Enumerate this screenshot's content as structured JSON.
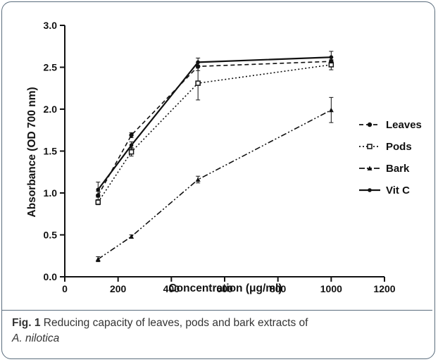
{
  "chart_data": {
    "type": "line",
    "xlabel": "Concentration (μg/ml)",
    "ylabel": "Absorbance (OD 700 nm)",
    "xlim": [
      0,
      1200
    ],
    "ylim": [
      0.0,
      3.0
    ],
    "xticks": [
      0,
      200,
      400,
      600,
      800,
      1000,
      1200
    ],
    "yticks": [
      0.0,
      0.5,
      1.0,
      1.5,
      2.0,
      2.5,
      3.0
    ],
    "xticklabels": [
      "0",
      "200",
      "400",
      "600",
      "800",
      "1000",
      "1200"
    ],
    "yticklabels": [
      "0.0",
      "0.5",
      "1.0",
      "1.5",
      "2.0",
      "2.5",
      "3.0"
    ],
    "grid": false,
    "legend_position": "right",
    "x": [
      125,
      250,
      500,
      1000
    ],
    "series": [
      {
        "name": "Leaves",
        "values": [
          0.97,
          1.69,
          2.51,
          2.57
        ],
        "errors": [
          0.05,
          0.03,
          0.05,
          0.05
        ],
        "dash": "6,4",
        "marker": "circle"
      },
      {
        "name": "Pods",
        "values": [
          0.89,
          1.49,
          2.31,
          2.53
        ],
        "errors": [
          0.03,
          0.05,
          0.2,
          0.06
        ],
        "dash": "2,3",
        "marker": "square"
      },
      {
        "name": "Bark",
        "values": [
          0.21,
          0.48,
          1.16,
          1.99
        ],
        "errors": [
          0.03,
          0.02,
          0.04,
          0.15
        ],
        "dash": "8,3,2,3,2,3",
        "marker": "triangle"
      },
      {
        "name": "Vit C",
        "values": [
          1.04,
          1.57,
          2.56,
          2.62
        ],
        "errors": [
          0.09,
          0.04,
          0.05,
          0.07
        ],
        "dash": "",
        "marker": "dot"
      }
    ]
  },
  "caption": {
    "label": "Fig. 1",
    "text": " Reducing capacity of leaves, pods and bark extracts of",
    "species": "A. nilotica"
  }
}
